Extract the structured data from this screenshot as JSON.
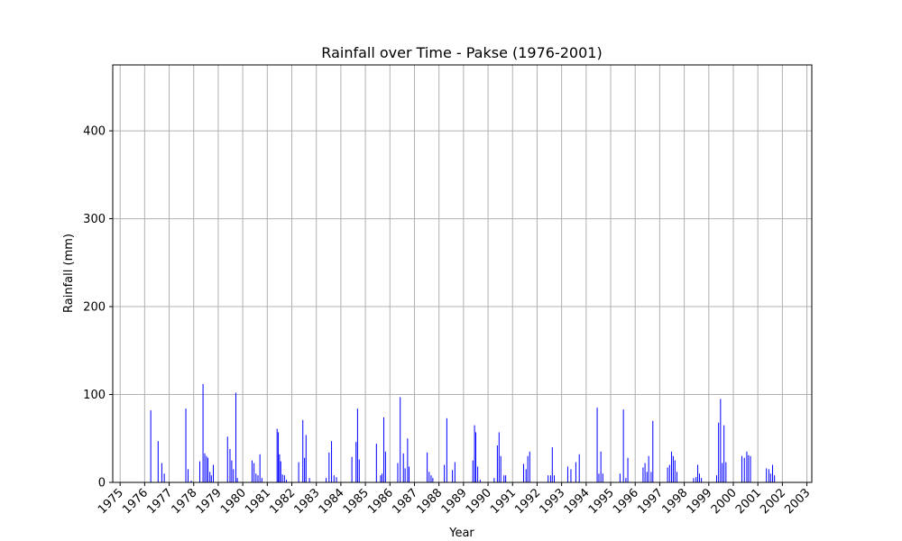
{
  "chart_data": {
    "type": "bar",
    "title": "Rainfall over Time - Pakse (1976-2001)",
    "xlabel": "Year",
    "ylabel": "Rainfall (mm)",
    "xlim": [
      1974.7,
      2003.2
    ],
    "ylim": [
      0,
      475
    ],
    "x_ticks": [
      1975,
      1976,
      1977,
      1978,
      1979,
      1980,
      1981,
      1982,
      1983,
      1984,
      1985,
      1986,
      1987,
      1988,
      1989,
      1990,
      1991,
      1992,
      1993,
      1994,
      1995,
      1996,
      1997,
      1998,
      1999,
      2000,
      2001,
      2002,
      2003
    ],
    "x_tick_labels": [
      "1975",
      "1976",
      "1977",
      "1978",
      "1979",
      "1980",
      "1981",
      "1982",
      "1983",
      "1984",
      "1985",
      "1986",
      "1987",
      "1988",
      "1989",
      "1990",
      "1991",
      "1992",
      "1993",
      "1994",
      "1995",
      "1996",
      "1997",
      "1998",
      "1999",
      "2000",
      "2001",
      "2002",
      "2003"
    ],
    "y_ticks": [
      0,
      100,
      200,
      300,
      400
    ],
    "y_tick_labels": [
      "0",
      "100",
      "200",
      "300",
      "400"
    ],
    "grid": true,
    "bar_color": "#0000ff",
    "series": [
      {
        "x": [
          1976.25,
          1976.55,
          1976.7,
          1976.8,
          1977.68,
          1977.77,
          1977.9,
          1978.25,
          1978.38,
          1978.45,
          1978.52,
          1978.58,
          1978.66,
          1978.72,
          1978.8,
          1979.38,
          1979.48,
          1979.55,
          1979.62,
          1979.72,
          1979.78,
          1980.38,
          1980.46,
          1980.54,
          1980.62,
          1980.7,
          1980.78,
          1981.4,
          1981.45,
          1981.5,
          1981.55,
          1981.62,
          1981.7,
          1981.78,
          1982.28,
          1982.45,
          1982.52,
          1982.58,
          1982.72,
          1983.4,
          1983.52,
          1983.62,
          1983.72,
          1983.82,
          1984.45,
          1984.62,
          1984.68,
          1984.75,
          1985.45,
          1985.62,
          1985.68,
          1985.75,
          1985.82,
          1986.32,
          1986.42,
          1986.55,
          1986.62,
          1986.72,
          1986.78,
          1987.52,
          1987.6,
          1987.68,
          1987.75,
          1988.22,
          1988.32,
          1988.55,
          1988.65,
          1989.38,
          1989.45,
          1989.5,
          1989.58,
          1989.68,
          1990.25,
          1990.38,
          1990.45,
          1990.52,
          1990.65,
          1990.72,
          1991.45,
          1991.55,
          1991.62,
          1991.7,
          1992.45,
          1992.55,
          1992.62,
          1992.7,
          1993.25,
          1993.38,
          1993.58,
          1993.72,
          1994.45,
          1994.52,
          1994.6,
          1994.68,
          1995.38,
          1995.52,
          1995.62,
          1995.7,
          1996.32,
          1996.4,
          1996.48,
          1996.55,
          1996.65,
          1996.72,
          1997.32,
          1997.4,
          1997.48,
          1997.55,
          1997.62,
          1997.7,
          1998.38,
          1998.48,
          1998.55,
          1998.62,
          1998.7,
          1999.32,
          1999.4,
          1999.48,
          1999.55,
          1999.62,
          1999.7,
          2000.35,
          2000.45,
          2000.55,
          2000.62,
          2000.7,
          2001.35,
          2001.45,
          2001.52,
          2001.6,
          2001.68
        ],
        "values": [
          82,
          47,
          22,
          10,
          84,
          15,
          2,
          24,
          112,
          33,
          30,
          28,
          12,
          8,
          20,
          52,
          38,
          25,
          15,
          102,
          5,
          25,
          22,
          10,
          8,
          32,
          5,
          61,
          57,
          32,
          24,
          9,
          8,
          3,
          23,
          71,
          28,
          54,
          5,
          5,
          34,
          47,
          8,
          6,
          29,
          46,
          84,
          26,
          44,
          8,
          10,
          74,
          35,
          22,
          97,
          33,
          16,
          50,
          18,
          34,
          12,
          8,
          5,
          20,
          73,
          14,
          23,
          25,
          65,
          57,
          18,
          3,
          5,
          42,
          57,
          30,
          8,
          8,
          21,
          15,
          30,
          35,
          8,
          8,
          40,
          8,
          18,
          15,
          23,
          32,
          85,
          10,
          35,
          10,
          10,
          83,
          5,
          28,
          17,
          22,
          12,
          30,
          12,
          70,
          17,
          20,
          35,
          30,
          25,
          12,
          5,
          6,
          20,
          10,
          5,
          8,
          68,
          95,
          22,
          65,
          23,
          30,
          28,
          35,
          31,
          30,
          16,
          15,
          10,
          20,
          8
        ]
      }
    ]
  }
}
